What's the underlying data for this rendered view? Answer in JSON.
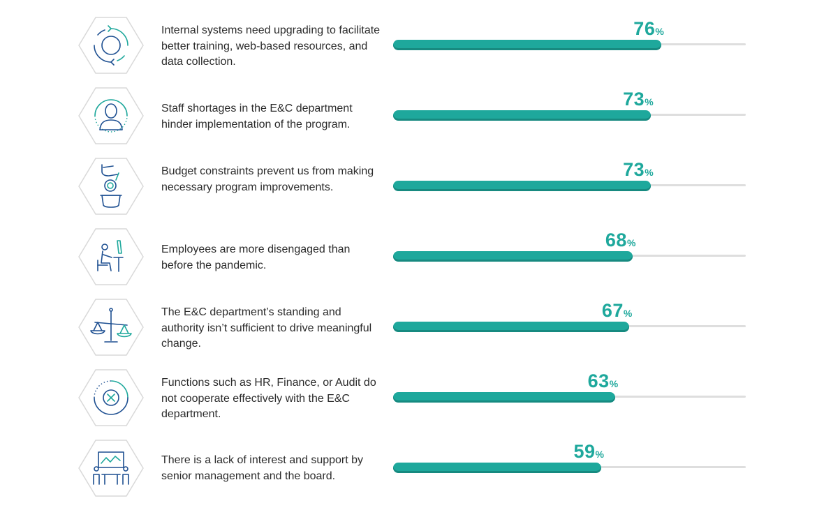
{
  "chart_data": {
    "type": "bar",
    "orientation": "horizontal",
    "xlim": [
      0,
      100
    ],
    "percent_sign": "%",
    "colors": {
      "bar": "#1ea89c",
      "track": "#dedede",
      "icon": "#1d4f91",
      "icon_accent": "#1ea89c"
    },
    "rows": [
      {
        "label": "Internal systems need upgrading to facilitate better training, web-based resources, and data collection.",
        "value": 76,
        "icon": "refresh-circle-icon"
      },
      {
        "label": "Staff shortages in the E&C department hinder implementation of the program.",
        "value": 73,
        "icon": "person-icon"
      },
      {
        "label": "Budget constraints prevent us from making necessary program improvements.",
        "value": 73,
        "icon": "coin-hand-icon"
      },
      {
        "label": "Employees are more disengaged than before the pandemic.",
        "value": 68,
        "icon": "desk-worker-icon"
      },
      {
        "label": "The E&C department’s standing and authority isn’t sufficient to drive meaningful change.",
        "value": 67,
        "icon": "scales-icon"
      },
      {
        "label": "Functions such as HR, Finance, or Audit do not cooperate effectively with the E&C department.",
        "value": 63,
        "icon": "cross-circle-icon"
      },
      {
        "label": "There is a lack of interest and support by senior management and the board.",
        "value": 59,
        "icon": "boardroom-icon"
      }
    ]
  }
}
